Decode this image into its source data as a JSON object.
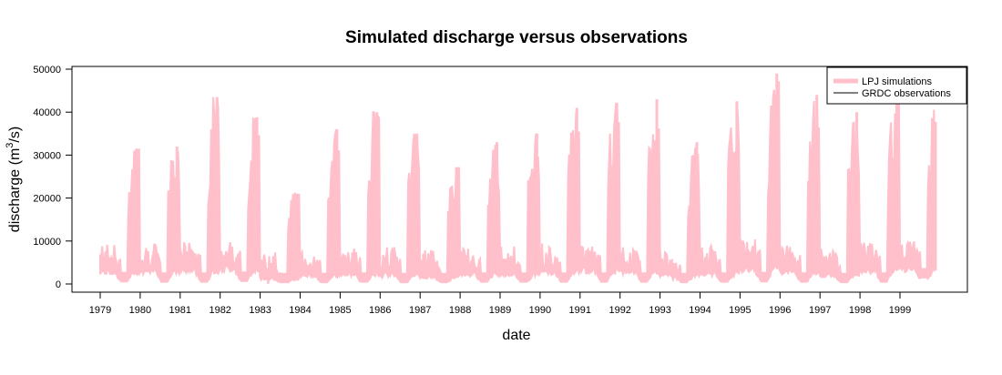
{
  "chart_data": {
    "type": "area",
    "title": "Simulated discharge versus observations",
    "xlabel": "date",
    "ylabel": "discharge (m",
    "ylabel_superscript": "3",
    "ylabel_suffix": "/s)",
    "xlim": [
      1979,
      1999.9
    ],
    "ylim": [
      0,
      50000
    ],
    "y_ticks": [
      0,
      10000,
      20000,
      30000,
      40000,
      50000
    ],
    "x_ticks": [
      "1979",
      "1980",
      "1981",
      "1982",
      "1983",
      "1984",
      "1985",
      "1986",
      "1987",
      "1988",
      "1989",
      "1990",
      "1991",
      "1992",
      "1993",
      "1994",
      "1995",
      "1996",
      "1997",
      "1998",
      "1999"
    ],
    "grid": false,
    "legend_position": "top-right",
    "series": [
      {
        "name": "LPJ simulations",
        "color": "#ffc0cb",
        "description_of_values": "annual peak discharge (m3/s) per year 1979-1999",
        "x": [
          1979,
          1980,
          1981,
          1982,
          1983,
          1984,
          1985,
          1986,
          1987,
          1988,
          1989,
          1990,
          1991,
          1992,
          1993,
          1994,
          1995,
          1996,
          1997,
          1998,
          1999
        ],
        "peak": [
          31500,
          32000,
          43500,
          38800,
          21000,
          36000,
          40000,
          35000,
          27000,
          33000,
          35000,
          41000,
          42000,
          43000,
          33000,
          42500,
          49000,
          44000,
          40000,
          42500,
          41500
        ],
        "low": [
          3500,
          3800,
          4000,
          4500,
          1500,
          2500,
          3000,
          2800,
          2000,
          3000,
          2800,
          3500,
          4000,
          3500,
          2500,
          3000,
          4500,
          3500,
          2500,
          4000,
          4500
        ],
        "min": [
          600,
          500,
          500,
          700,
          400,
          400,
          500,
          400,
          400,
          500,
          500,
          500,
          500,
          500,
          400,
          500,
          600,
          500,
          400,
          500,
          1500
        ]
      },
      {
        "name": "GRDC observations",
        "color": "#000000",
        "values": []
      }
    ]
  }
}
